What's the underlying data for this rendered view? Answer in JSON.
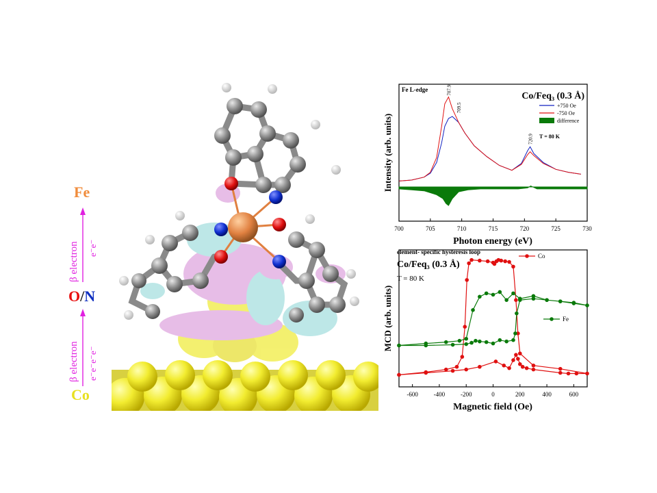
{
  "left": {
    "label_fe": "Fe",
    "label_o": "O",
    "label_slash": "/",
    "label_n": "N",
    "label_co": "Co",
    "upper_beta": "β electron",
    "upper_e": "e⁻e⁻",
    "lower_beta": "β electron",
    "lower_e": "e⁻e⁻e⁻e⁻",
    "colors": {
      "fe": "#f08c3c",
      "o": "#e81010",
      "n": "#1030c0",
      "co": "#e8e020",
      "beta": "#e020e0"
    }
  },
  "chart_data": [
    {
      "type": "line",
      "title": "Co/Feq₃ (0.3 Å)",
      "panel_label": "Fe L-edge",
      "xlabel": "Photon energy (eV)",
      "ylabel": "Intensity (arb. units)",
      "xlim": [
        700,
        730
      ],
      "xticks": [
        700,
        705,
        710,
        715,
        720,
        725,
        730
      ],
      "temperature": "T = 80 K",
      "peak_labels": [
        {
          "text": "707.9",
          "x": 707.9,
          "y": 0.92
        },
        {
          "text": "709.5",
          "x": 709.5,
          "y": 0.74
        },
        {
          "text": "720.9",
          "x": 720.9,
          "y": 0.42
        }
      ],
      "series": [
        {
          "name": "+750 Oe",
          "color": "#1020c0",
          "x": [
            700,
            702,
            704,
            705,
            706,
            706.8,
            707.3,
            707.9,
            708.5,
            709.5,
            710.5,
            712,
            714,
            716,
            718,
            719.5,
            720.5,
            720.9,
            721.5,
            723,
            725,
            727,
            729
          ],
          "y": [
            0.06,
            0.07,
            0.1,
            0.14,
            0.25,
            0.45,
            0.62,
            0.7,
            0.72,
            0.66,
            0.55,
            0.42,
            0.31,
            0.22,
            0.17,
            0.24,
            0.37,
            0.41,
            0.34,
            0.25,
            0.18,
            0.15,
            0.13
          ]
        },
        {
          "name": "-750 Oe",
          "color": "#e01010",
          "x": [
            700,
            702,
            704,
            705,
            706,
            706.8,
            707.3,
            707.9,
            708.5,
            709.5,
            710.5,
            712,
            714,
            716,
            718,
            719.5,
            720.5,
            720.9,
            721.5,
            723,
            725,
            727,
            729
          ],
          "y": [
            0.06,
            0.07,
            0.1,
            0.15,
            0.3,
            0.62,
            0.85,
            0.92,
            0.8,
            0.66,
            0.55,
            0.42,
            0.31,
            0.22,
            0.17,
            0.23,
            0.33,
            0.36,
            0.32,
            0.24,
            0.18,
            0.15,
            0.13
          ]
        },
        {
          "name": "difference",
          "color": "#0a7a0a",
          "x": [
            700,
            702,
            704,
            706,
            707,
            707.5,
            707.9,
            708.5,
            709.5,
            711,
            713,
            716,
            719,
            720.5,
            721,
            722,
            725,
            728,
            730
          ],
          "y": [
            -0.02,
            -0.03,
            -0.04,
            -0.08,
            -0.12,
            -0.17,
            -0.19,
            -0.12,
            -0.05,
            -0.03,
            -0.02,
            -0.02,
            -0.02,
            -0.01,
            0.01,
            -0.02,
            -0.02,
            -0.02,
            -0.02
          ]
        }
      ]
    },
    {
      "type": "line",
      "title": "Co/Feq₃ (0.3 Å)",
      "panel_label": "element- specific hysteresis loop",
      "xlabel": "Magnetic field (Oe)",
      "ylabel": "MCD (arb. units)",
      "xlim": [
        -700,
        700
      ],
      "xticks": [
        -600,
        -400,
        -200,
        0,
        200,
        400,
        600
      ],
      "temperature": "T = 80 K",
      "series": [
        {
          "name": "Co",
          "color": "#e01010",
          "x": [
            -700,
            -500,
            -350,
            -270,
            -230,
            -210,
            -195,
            -180,
            -160,
            -100,
            -40,
            0,
            10,
            25,
            40,
            60,
            90,
            120,
            150,
            170,
            185,
            200,
            300,
            500,
            700,
            620,
            560,
            500,
            300,
            250,
            220,
            200,
            185,
            170,
            150,
            120,
            80,
            20,
            -100,
            -200,
            -300,
            -500,
            -700
          ],
          "y": [
            -0.82,
            -0.78,
            -0.74,
            -0.7,
            -0.55,
            -0.1,
            0.6,
            0.85,
            0.9,
            0.89,
            0.88,
            0.86,
            0.84,
            0.88,
            0.9,
            0.89,
            0.88,
            0.87,
            0.8,
            0.3,
            -0.2,
            -0.5,
            -0.68,
            -0.73,
            -0.8,
            -0.8,
            -0.8,
            -0.79,
            -0.74,
            -0.72,
            -0.7,
            -0.66,
            -0.58,
            -0.52,
            -0.6,
            -0.72,
            -0.68,
            -0.62,
            -0.7,
            -0.74,
            -0.76,
            -0.79,
            -0.82
          ]
        },
        {
          "name": "Fe",
          "color": "#0a7a0a",
          "x": [
            -700,
            -500,
            -350,
            -250,
            -200,
            -150,
            -100,
            -50,
            0,
            50,
            100,
            150,
            200,
            300,
            400,
            500,
            600,
            700,
            600,
            500,
            400,
            300,
            200,
            175,
            165,
            150,
            100,
            50,
            0,
            -50,
            -100,
            -130,
            -160,
            -200,
            -300,
            -500,
            -700
          ],
          "y": [
            -0.38,
            -0.35,
            -0.33,
            -0.31,
            -0.28,
            0.15,
            0.35,
            0.4,
            0.38,
            0.42,
            0.3,
            0.4,
            0.32,
            0.36,
            0.3,
            0.28,
            0.25,
            0.22,
            0.26,
            0.28,
            0.3,
            0.32,
            0.3,
            0.1,
            -0.2,
            -0.3,
            -0.32,
            -0.3,
            -0.35,
            -0.33,
            -0.32,
            -0.31,
            -0.34,
            -0.36,
            -0.37,
            -0.38,
            -0.38
          ]
        }
      ]
    }
  ]
}
